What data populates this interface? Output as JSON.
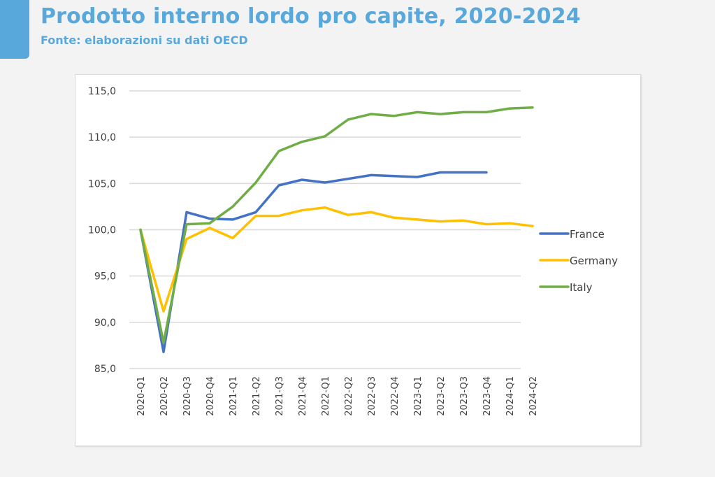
{
  "header": {
    "title": "Prodotto interno lordo pro capite, 2020-2024",
    "subtitle": "Fonte: elaborazioni su dati OECD",
    "accent_color": "#58a8dc"
  },
  "chart_data": {
    "type": "line",
    "title": "Prodotto interno lordo pro capite, 2020-2024",
    "subtitle": "Fonte: elaborazioni su dati OECD",
    "xlabel": "",
    "ylabel": "",
    "ylim": [
      85,
      115
    ],
    "yticks": [
      85,
      90,
      95,
      100,
      105,
      110,
      115
    ],
    "ytick_labels": [
      "85,0",
      "90,0",
      "95,0",
      "100,0",
      "105,0",
      "110,0",
      "115,0"
    ],
    "grid": true,
    "legend_position": "right",
    "categories": [
      "2020-Q1",
      "2020-Q2",
      "2020-Q3",
      "2020-Q4",
      "2021-Q1",
      "2021-Q2",
      "2021-Q3",
      "2021-Q4",
      "2022-Q1",
      "2022-Q2",
      "2022-Q3",
      "2022-Q4",
      "2023-Q1",
      "2023-Q2",
      "2023-Q3",
      "2023-Q4",
      "2024-Q1",
      "2024-Q2"
    ],
    "series": [
      {
        "name": "France",
        "color": "#4472c4",
        "values": [
          100.0,
          86.8,
          101.9,
          101.2,
          101.1,
          101.9,
          104.8,
          105.4,
          105.1,
          105.5,
          105.9,
          105.8,
          105.7,
          106.2,
          106.2,
          106.2,
          null,
          null
        ]
      },
      {
        "name": "Germany",
        "color": "#ffc000",
        "values": [
          100.0,
          91.2,
          99.0,
          100.2,
          99.1,
          101.5,
          101.5,
          102.1,
          102.4,
          101.6,
          101.9,
          101.3,
          101.1,
          100.9,
          101.0,
          100.6,
          100.7,
          100.4
        ]
      },
      {
        "name": "Italy",
        "color": "#70ad47",
        "values": [
          100.0,
          87.8,
          100.6,
          100.7,
          102.5,
          105.1,
          108.5,
          109.5,
          110.1,
          111.9,
          112.5,
          112.3,
          112.7,
          112.5,
          112.7,
          112.7,
          113.1,
          113.2
        ]
      }
    ]
  }
}
